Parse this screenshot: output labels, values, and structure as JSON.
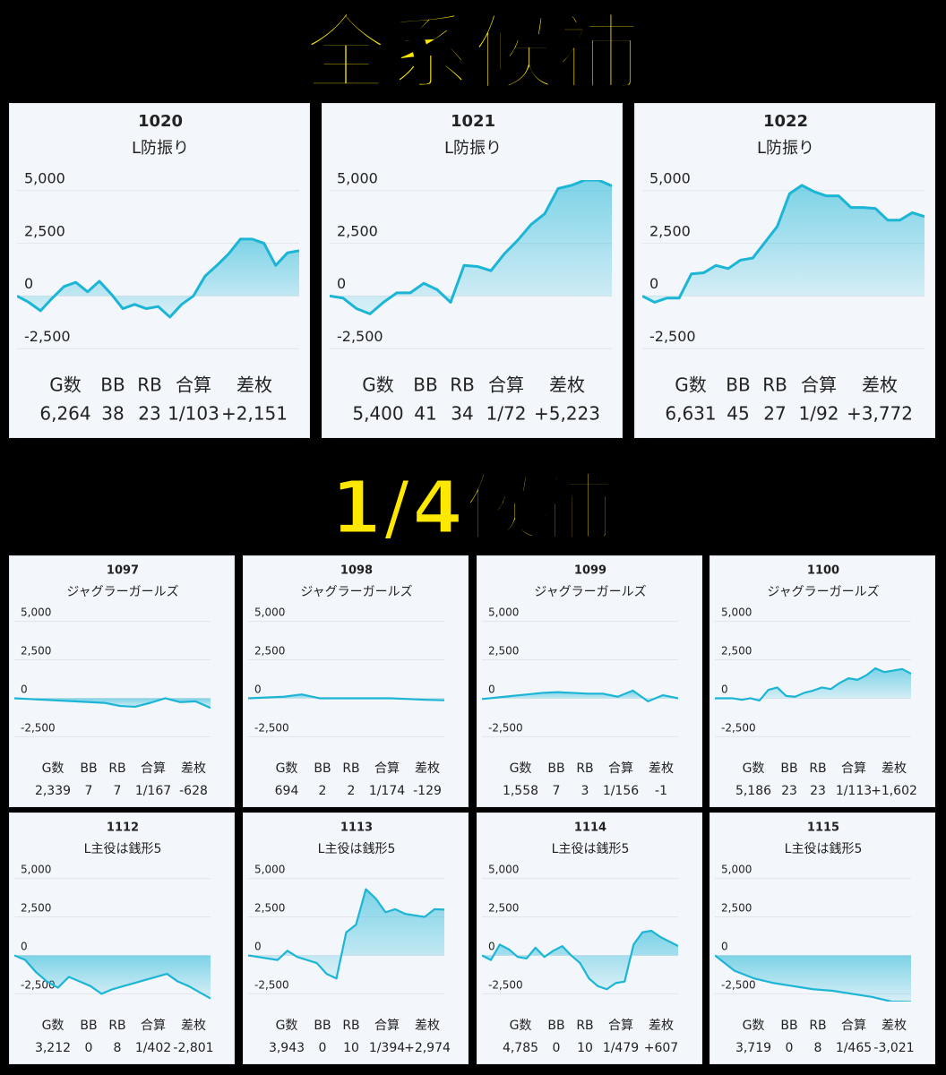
{
  "headings": [
    "全系候補",
    "1/4候補"
  ],
  "chart_data": [
    {
      "type": "line",
      "title": "1020",
      "subtitle": "L防振り",
      "color": "#1cb5d6",
      "ylim": [
        -3000,
        5500
      ],
      "yticks": [
        {
          "value": 5000,
          "label": "5,000"
        },
        {
          "value": 2500,
          "label": "2,500"
        },
        0,
        {
          "value": -2500,
          "label": "-2,500"
        }
      ],
      "grid": true,
      "values": [
        0,
        -300,
        -700,
        -100,
        450,
        650,
        200,
        700,
        100,
        -600,
        -400,
        -600,
        -500,
        -1000,
        -400,
        0,
        950,
        1450,
        2000,
        2700,
        2700,
        2500,
        1450,
        2050,
        2151
      ],
      "stats": {
        "headers": [
          "G数",
          "BB",
          "RB",
          "合算",
          "差枚"
        ],
        "values": [
          "6,264",
          "38",
          "23",
          "1/103",
          "+2,151"
        ]
      }
    },
    {
      "type": "line",
      "title": "1021",
      "subtitle": "L防振り",
      "color": "#1cb5d6",
      "ylim": [
        -3000,
        5500
      ],
      "yticks": [
        {
          "value": 5000,
          "label": "5,000"
        },
        {
          "value": 2500,
          "label": "2,500"
        },
        0,
        {
          "value": -2500,
          "label": "-2,500"
        }
      ],
      "grid": true,
      "values": [
        0,
        -100,
        -600,
        -850,
        -300,
        150,
        150,
        600,
        300,
        -300,
        1450,
        1400,
        1200,
        2000,
        2650,
        3400,
        3900,
        5100,
        5250,
        5500,
        5500,
        5223
      ],
      "stats": {
        "headers": [
          "G数",
          "BB",
          "RB",
          "合算",
          "差枚"
        ],
        "values": [
          "5,400",
          "41",
          "34",
          "1/72",
          "+5,223"
        ]
      }
    },
    {
      "type": "line",
      "title": "1022",
      "subtitle": "L防振り",
      "color": "#1cb5d6",
      "ylim": [
        -3000,
        5500
      ],
      "yticks": [
        {
          "value": 5000,
          "label": "5,000"
        },
        {
          "value": 2500,
          "label": "2,500"
        },
        0,
        {
          "value": -2500,
          "label": "-2,500"
        }
      ],
      "grid": true,
      "values": [
        0,
        -300,
        -100,
        -100,
        1050,
        1100,
        1450,
        1300,
        1700,
        1800,
        2550,
        3300,
        4850,
        5250,
        4950,
        4750,
        4750,
        4200,
        4200,
        4150,
        3600,
        3600,
        3950,
        3772
      ],
      "stats": {
        "headers": [
          "G数",
          "BB",
          "RB",
          "合算",
          "差枚"
        ],
        "values": [
          "6,631",
          "45",
          "27",
          "1/92",
          "+3,772"
        ]
      }
    },
    {
      "type": "line",
      "title": "1097",
      "subtitle": "ジャグラーガールズ",
      "color": "#1cb5d6",
      "ylim": [
        -3000,
        5500
      ],
      "yticks": [
        {
          "value": 5000,
          "label": "5,000"
        },
        {
          "value": 2500,
          "label": "2,500"
        },
        0,
        {
          "value": -2500,
          "label": "-2,500"
        }
      ],
      "grid": true,
      "values": [
        0,
        -50,
        -100,
        -150,
        -200,
        -250,
        -300,
        -500,
        -550,
        -300,
        0,
        -250,
        -200,
        -628
      ],
      "stats": {
        "headers": [
          "G数",
          "BB",
          "RB",
          "合算",
          "差枚"
        ],
        "values": [
          "2,339",
          "7",
          "7",
          "1/167",
          "-628"
        ]
      }
    },
    {
      "type": "line",
      "title": "1098",
      "subtitle": "ジャグラーガールズ",
      "color": "#1cb5d6",
      "ylim": [
        -3000,
        5500
      ],
      "yticks": [
        {
          "value": 5000,
          "label": "5,000"
        },
        {
          "value": 2500,
          "label": "2,500"
        },
        0,
        {
          "value": -2500,
          "label": "-2,500"
        }
      ],
      "grid": true,
      "values": [
        0,
        50,
        100,
        250,
        0,
        0,
        0,
        0,
        0,
        -50,
        -100,
        -129
      ],
      "stats": {
        "headers": [
          "G数",
          "BB",
          "RB",
          "合算",
          "差枚"
        ],
        "values": [
          "694",
          "2",
          "2",
          "1/174",
          "-129"
        ]
      }
    },
    {
      "type": "line",
      "title": "1099",
      "subtitle": "ジャグラーガールズ",
      "color": "#1cb5d6",
      "ylim": [
        -3000,
        5500
      ],
      "yticks": [
        {
          "value": 5000,
          "label": "5,000"
        },
        {
          "value": 2500,
          "label": "2,500"
        },
        0,
        {
          "value": -2500,
          "label": "-2,500"
        }
      ],
      "grid": true,
      "values": [
        -50,
        50,
        150,
        250,
        350,
        400,
        350,
        300,
        300,
        100,
        500,
        -200,
        200,
        -1
      ],
      "stats": {
        "headers": [
          "G数",
          "BB",
          "RB",
          "合算",
          "差枚"
        ],
        "values": [
          "1,558",
          "7",
          "3",
          "1/156",
          "-1"
        ]
      }
    },
    {
      "type": "line",
      "title": "1100",
      "subtitle": "ジャグラーガールズ",
      "color": "#1cb5d6",
      "ylim": [
        -3000,
        5500
      ],
      "yticks": [
        {
          "value": 5000,
          "label": "5,000"
        },
        {
          "value": 2500,
          "label": "2,500"
        },
        0,
        {
          "value": -2500,
          "label": "-2,500"
        }
      ],
      "grid": true,
      "values": [
        0,
        0,
        0,
        -100,
        0,
        -150,
        550,
        700,
        150,
        100,
        350,
        500,
        700,
        600,
        1000,
        1300,
        1200,
        1500,
        1950,
        1700,
        1800,
        1900,
        1602
      ],
      "stats": {
        "headers": [
          "G数",
          "BB",
          "RB",
          "合算",
          "差枚"
        ],
        "values": [
          "5,186",
          "23",
          "23",
          "1/113",
          "+1,602"
        ]
      }
    },
    {
      "type": "line",
      "title": "1112",
      "subtitle": "L主役は銭形5",
      "color": "#1cb5d6",
      "ylim": [
        -3000,
        5500
      ],
      "yticks": [
        {
          "value": 5000,
          "label": "5,000"
        },
        {
          "value": 2500,
          "label": "2,500"
        },
        0,
        {
          "value": -2500,
          "label": "-2,500"
        }
      ],
      "grid": true,
      "values": [
        0,
        -300,
        -1100,
        -1700,
        -2100,
        -1400,
        -1700,
        -2000,
        -2500,
        -2200,
        -2000,
        -1800,
        -1600,
        -1400,
        -1200,
        -1700,
        -2000,
        -2400,
        -2801
      ],
      "stats": {
        "headers": [
          "G数",
          "BB",
          "RB",
          "合算",
          "差枚"
        ],
        "values": [
          "3,212",
          "0",
          "8",
          "1/402",
          "-2,801"
        ]
      }
    },
    {
      "type": "line",
      "title": "1113",
      "subtitle": "L主役は銭形5",
      "color": "#1cb5d6",
      "ylim": [
        -3000,
        5500
      ],
      "yticks": [
        {
          "value": 5000,
          "label": "5,000"
        },
        {
          "value": 2500,
          "label": "2,500"
        },
        0,
        {
          "value": -2500,
          "label": "-2,500"
        }
      ],
      "grid": true,
      "values": [
        0,
        -100,
        -200,
        -300,
        300,
        -100,
        -300,
        -500,
        -1200,
        -1500,
        1500,
        2000,
        4300,
        3700,
        2800,
        3000,
        2700,
        2600,
        2500,
        3000,
        2974
      ],
      "stats": {
        "headers": [
          "G数",
          "BB",
          "RB",
          "合算",
          "差枚"
        ],
        "values": [
          "3,943",
          "0",
          "10",
          "1/394",
          "+2,974"
        ]
      }
    },
    {
      "type": "line",
      "title": "1114",
      "subtitle": "L主役は銭形5",
      "color": "#1cb5d6",
      "ylim": [
        -3000,
        5500
      ],
      "yticks": [
        {
          "value": 5000,
          "label": "5,000"
        },
        {
          "value": 2500,
          "label": "2,500"
        },
        0,
        {
          "value": -2500,
          "label": "-2,500"
        }
      ],
      "grid": true,
      "values": [
        0,
        -300,
        700,
        400,
        -100,
        -200,
        500,
        -100,
        300,
        600,
        0,
        -500,
        -1500,
        -2000,
        -2200,
        -1800,
        -1700,
        700,
        1500,
        1600,
        1200,
        900,
        607
      ],
      "stats": {
        "headers": [
          "G数",
          "BB",
          "RB",
          "合算",
          "差枚"
        ],
        "values": [
          "4,785",
          "0",
          "10",
          "1/479",
          "+607"
        ]
      }
    },
    {
      "type": "line",
      "title": "1115",
      "subtitle": "L主役は銭形5",
      "color": "#1cb5d6",
      "ylim": [
        -3000,
        5500
      ],
      "yticks": [
        {
          "value": 5000,
          "label": "5,000"
        },
        {
          "value": 2500,
          "label": "2,500"
        },
        0,
        {
          "value": -2500,
          "label": "-2,500"
        }
      ],
      "grid": true,
      "values": [
        0,
        -1000,
        -1500,
        -1800,
        -2000,
        -2200,
        -2300,
        -2500,
        -2700,
        -3000,
        -3021
      ],
      "stats": {
        "headers": [
          "G数",
          "BB",
          "RB",
          "合算",
          "差枚"
        ],
        "values": [
          "3,719",
          "0",
          "8",
          "1/465",
          "-3,021"
        ]
      }
    }
  ]
}
